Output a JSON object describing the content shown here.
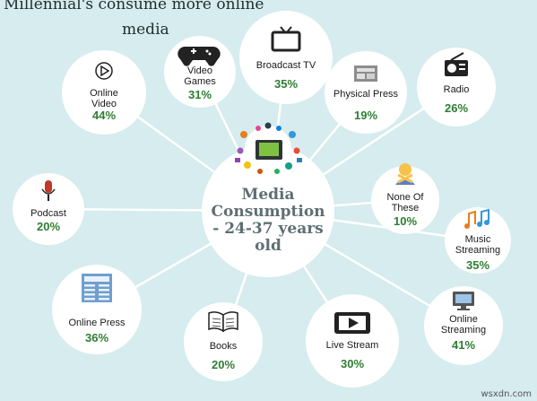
{
  "title": {
    "line1": "Millennial's consume more online",
    "line2": "media"
  },
  "center": {
    "lines": [
      "Media",
      "Consumption",
      "- 24-37 years",
      "old"
    ]
  },
  "colors": {
    "background": "#d6ecee",
    "bubble": "#ffffff",
    "connector": "#ffffff",
    "percent": "#2e7d32",
    "label": "#1a1a1a",
    "center_text": "#5f6f73"
  },
  "nodes": [
    {
      "id": "video-games",
      "label": [
        "Video",
        "Games"
      ],
      "value": "31%",
      "icon": "gamepad-icon"
    },
    {
      "id": "broadcast-tv",
      "label": [
        "Broadcast TV"
      ],
      "value": "35%",
      "icon": "tv-icon"
    },
    {
      "id": "physical-press",
      "label": [
        "Physical Press"
      ],
      "value": "19%",
      "icon": "newspaper-icon"
    },
    {
      "id": "radio",
      "label": [
        "Radio"
      ],
      "value": "26%",
      "icon": "radio-icon"
    },
    {
      "id": "online-video",
      "label": [
        "Online",
        "Video"
      ],
      "value": "44%",
      "icon": "play-icon"
    },
    {
      "id": "none-of-these",
      "label": [
        "None Of",
        "These"
      ],
      "value": "10%",
      "icon": "person-crossed-arms-icon"
    },
    {
      "id": "podcast",
      "label": [
        "Podcast"
      ],
      "value": "20%",
      "icon": "microphone-icon"
    },
    {
      "id": "music-streaming",
      "label": [
        "Music",
        "Streaming"
      ],
      "value": "35%",
      "icon": "music-notes-icon"
    },
    {
      "id": "online-press",
      "label": [
        "Online Press"
      ],
      "value": "36%",
      "icon": "online-newspaper-icon"
    },
    {
      "id": "books",
      "label": [
        "Books"
      ],
      "value": "20%",
      "icon": "book-icon"
    },
    {
      "id": "live-stream",
      "label": [
        "Live Stream"
      ],
      "value": "30%",
      "icon": "live-stream-play-icon"
    },
    {
      "id": "online-streaming",
      "label": [
        "Online",
        "Streaming"
      ],
      "value": "41%",
      "icon": "monitor-icon"
    }
  ],
  "watermark": "wsxdn.com"
}
